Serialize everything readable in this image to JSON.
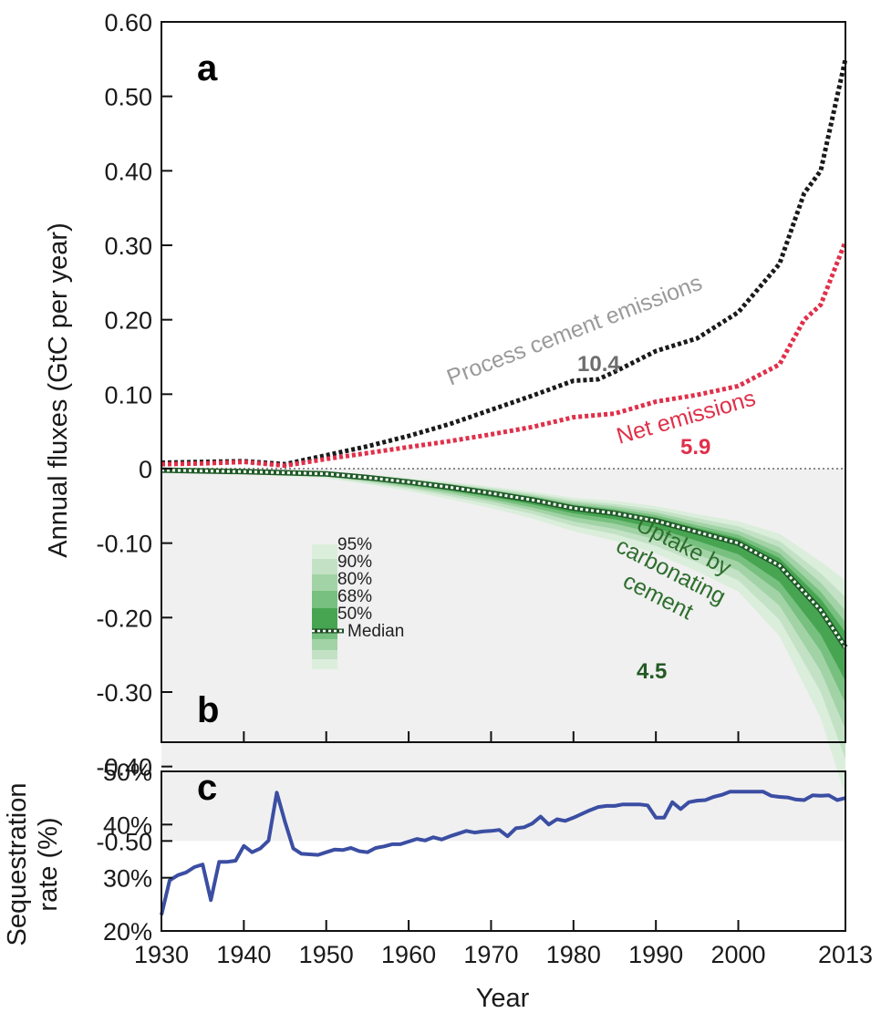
{
  "colors": {
    "process": "#1a1a1a",
    "process_label": "#9a9a9a",
    "net": "#e0304a",
    "uptake_label": "#2e6e2e",
    "band_95": "#dbeedc",
    "band_90": "#c3e2c5",
    "band_80": "#a2d3a6",
    "band_68": "#78c07f",
    "band_50": "#47a552",
    "median_fill": "#1f5a27",
    "shade": "#f0f0f0",
    "sequestration": "#3b4ea3"
  },
  "chart_data": [
    {
      "panel": "a",
      "type": "line",
      "ylabel": "Annual fluxes (GtC per year)",
      "ylim": [
        -0.5,
        0.6
      ],
      "xlim": [
        1930,
        2013
      ],
      "yticks": [
        "0.60",
        "0.50",
        "0.40",
        "0.30",
        "0.20",
        "0.10",
        "0",
        "-0.10",
        "-0.20",
        "-0.30",
        "-0.40",
        "-0.50"
      ],
      "ytick_values": [
        0.6,
        0.5,
        0.4,
        0.3,
        0.2,
        0.1,
        0,
        -0.1,
        -0.2,
        -0.3,
        -0.4,
        -0.5
      ],
      "series": [
        {
          "key": "process",
          "label": "Process cement emissions",
          "total": "10.4",
          "x": [
            1930,
            1935,
            1940,
            1945,
            1950,
            1955,
            1960,
            1965,
            1970,
            1975,
            1980,
            1983,
            1985,
            1990,
            1995,
            2000,
            2005,
            2008,
            2010,
            2013
          ],
          "y": [
            0.008,
            0.009,
            0.01,
            0.006,
            0.018,
            0.03,
            0.044,
            0.06,
            0.079,
            0.098,
            0.118,
            0.12,
            0.13,
            0.158,
            0.175,
            0.21,
            0.275,
            0.37,
            0.4,
            0.55
          ]
        },
        {
          "key": "net",
          "label": "Net emissions",
          "total": "5.9",
          "x": [
            1930,
            1935,
            1940,
            1945,
            1950,
            1955,
            1960,
            1965,
            1970,
            1975,
            1980,
            1985,
            1990,
            1995,
            2000,
            2005,
            2008,
            2010,
            2013
          ],
          "y": [
            0.006,
            0.007,
            0.009,
            0.004,
            0.013,
            0.021,
            0.029,
            0.037,
            0.046,
            0.056,
            0.069,
            0.074,
            0.09,
            0.099,
            0.111,
            0.14,
            0.2,
            0.22,
            0.305
          ]
        }
      ],
      "shade_range": [
        -0.5,
        0
      ]
    },
    {
      "panel": "b",
      "type": "area",
      "label": "Uptake by carbonating cement",
      "label_lines": [
        "Uptake by",
        "carbonating",
        "cement"
      ],
      "total": "4.5",
      "x": [
        1930,
        1940,
        1950,
        1955,
        1960,
        1965,
        1970,
        1975,
        1980,
        1985,
        1990,
        1995,
        2000,
        2005,
        2010,
        2013
      ],
      "median": [
        -0.002,
        -0.004,
        -0.007,
        -0.012,
        -0.018,
        -0.025,
        -0.033,
        -0.042,
        -0.053,
        -0.06,
        -0.07,
        -0.085,
        -0.1,
        -0.13,
        -0.19,
        -0.24
      ],
      "bands": [
        {
          "label": "95%",
          "width": [
            0.001,
            0.003,
            0.006,
            0.009,
            0.012,
            0.016,
            0.02,
            0.025,
            0.031,
            0.037,
            0.044,
            0.053,
            0.065,
            0.095,
            0.145,
            0.2
          ]
        },
        {
          "label": "90%",
          "width": [
            0.001,
            0.002,
            0.004,
            0.007,
            0.009,
            0.012,
            0.015,
            0.019,
            0.024,
            0.028,
            0.034,
            0.041,
            0.05,
            0.073,
            0.11,
            0.15
          ]
        },
        {
          "label": "80%",
          "width": [
            0.001,
            0.002,
            0.003,
            0.005,
            0.007,
            0.009,
            0.011,
            0.014,
            0.018,
            0.021,
            0.025,
            0.03,
            0.037,
            0.054,
            0.082,
            0.11
          ]
        },
        {
          "label": "68%",
          "width": [
            0.0,
            0.001,
            0.002,
            0.003,
            0.005,
            0.006,
            0.008,
            0.01,
            0.012,
            0.014,
            0.017,
            0.02,
            0.025,
            0.036,
            0.055,
            0.075
          ]
        },
        {
          "label": "50%",
          "width": [
            0.0,
            0.001,
            0.001,
            0.002,
            0.003,
            0.004,
            0.005,
            0.006,
            0.007,
            0.008,
            0.01,
            0.012,
            0.015,
            0.022,
            0.033,
            0.045
          ]
        }
      ],
      "legend_labels": [
        "95%",
        "90%",
        "80%",
        "68%",
        "50%"
      ],
      "legend_median": "Median"
    },
    {
      "panel": "c",
      "type": "line",
      "ylabel_lines": [
        "Sequestration",
        "rate (%)"
      ],
      "ylim": [
        20,
        50
      ],
      "yticks": [
        "50%",
        "40%",
        "30%",
        "20%"
      ],
      "ytick_values": [
        50,
        40,
        30,
        20
      ],
      "xlabel": "Year",
      "xtick_values": [
        1930,
        1940,
        1950,
        1960,
        1970,
        1980,
        1990,
        2000,
        2013
      ],
      "xticks": [
        "1930",
        "1940",
        "1950",
        "1960",
        "1970",
        "1980",
        "1990",
        "2000",
        "2013"
      ],
      "x": [
        1930,
        1931,
        1932,
        1933,
        1934,
        1935,
        1936,
        1937,
        1938,
        1939,
        1940,
        1941,
        1942,
        1943,
        1944,
        1945,
        1946,
        1947,
        1948,
        1949,
        1950,
        1951,
        1952,
        1953,
        1954,
        1955,
        1956,
        1957,
        1958,
        1959,
        1960,
        1961,
        1962,
        1963,
        1964,
        1965,
        1966,
        1967,
        1968,
        1969,
        1970,
        1971,
        1972,
        1973,
        1974,
        1975,
        1976,
        1977,
        1978,
        1979,
        1980,
        1981,
        1982,
        1983,
        1984,
        1985,
        1986,
        1987,
        1988,
        1989,
        1990,
        1991,
        1992,
        1993,
        1994,
        1995,
        1996,
        1997,
        1998,
        1999,
        2000,
        2001,
        2002,
        2003,
        2004,
        2005,
        2006,
        2007,
        2008,
        2009,
        2010,
        2011,
        2012,
        2013
      ],
      "y": [
        23.0,
        29.5,
        30.5,
        31.0,
        32.0,
        32.5,
        25.8,
        33.0,
        33.0,
        33.2,
        36.0,
        34.8,
        35.5,
        37.0,
        46.0,
        40.5,
        35.5,
        34.5,
        34.4,
        34.3,
        34.8,
        35.3,
        35.2,
        35.6,
        35.0,
        34.8,
        35.6,
        35.9,
        36.3,
        36.3,
        36.8,
        37.3,
        37.0,
        37.6,
        37.2,
        37.8,
        38.3,
        38.8,
        38.5,
        38.7,
        38.8,
        39.0,
        37.8,
        39.3,
        39.5,
        40.2,
        41.5,
        40.0,
        41.0,
        40.7,
        41.3,
        42.0,
        42.7,
        43.3,
        43.5,
        43.5,
        43.8,
        43.8,
        43.8,
        43.6,
        41.3,
        41.3,
        44.2,
        42.9,
        44.2,
        44.5,
        44.6,
        45.2,
        45.6,
        46.2,
        46.2,
        46.2,
        46.2,
        46.2,
        45.4,
        45.2,
        45.1,
        44.7,
        44.6,
        45.5,
        45.4,
        45.5,
        44.6,
        45.0
      ]
    }
  ],
  "panel_labels": {
    "a": "a",
    "b": "b",
    "c": "c"
  }
}
